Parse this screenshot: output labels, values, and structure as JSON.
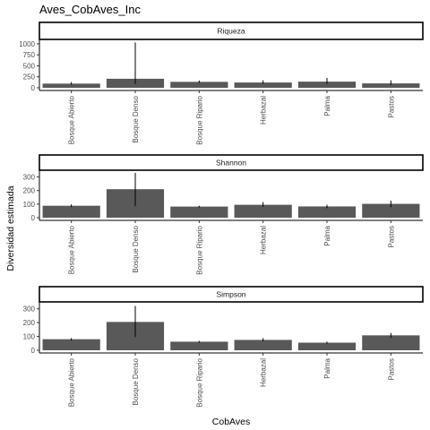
{
  "chart_data": {
    "type": "bar",
    "title": "Aves_CobAves_Inc",
    "xlabel": "CobAves",
    "ylabel": "Diversidad estimada",
    "categories": [
      "Bosque Abierto",
      "Bosque Denso",
      "Bosque Ripario",
      "Herbazal",
      "Palma",
      "Pastos"
    ],
    "colors": {
      "bar": "#595959",
      "errorbar": "#000000",
      "strip_fill": "#ffffff",
      "axis": "#000000"
    },
    "grid": false,
    "facets": [
      {
        "name": "Riqueza",
        "ylim": [
          0,
          1100
        ],
        "yticks": [
          0,
          250,
          500,
          750,
          1000
        ],
        "values": [
          95,
          205,
          135,
          120,
          140,
          100
        ],
        "error_low": [
          70,
          90,
          110,
          90,
          90,
          65
        ],
        "error_high": [
          130,
          1030,
          165,
          170,
          225,
          170
        ]
      },
      {
        "name": "Shannon",
        "ylim": [
          0,
          350
        ],
        "yticks": [
          0,
          100,
          200,
          300
        ],
        "values": [
          88,
          210,
          82,
          95,
          83,
          102
        ],
        "error_low": [
          78,
          85,
          75,
          80,
          70,
          78
        ],
        "error_high": [
          98,
          330,
          88,
          115,
          95,
          125
        ]
      },
      {
        "name": "Simpson",
        "ylim": [
          0,
          350
        ],
        "yticks": [
          0,
          100,
          200,
          300
        ],
        "values": [
          80,
          205,
          62,
          75,
          55,
          108
        ],
        "error_low": [
          70,
          95,
          55,
          65,
          48,
          90
        ],
        "error_high": [
          88,
          320,
          68,
          88,
          62,
          125
        ]
      }
    ]
  }
}
